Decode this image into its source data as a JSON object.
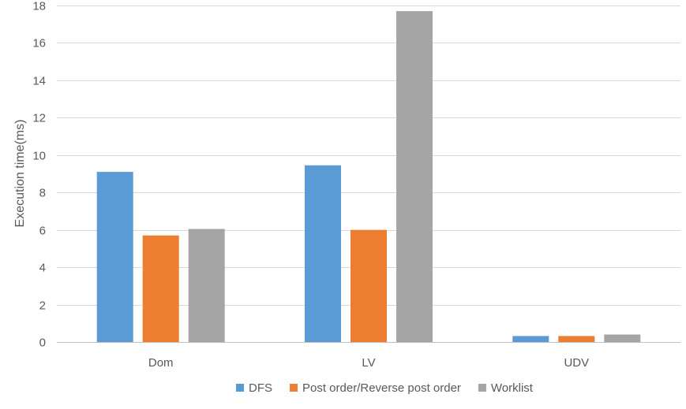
{
  "chart_data": {
    "type": "bar",
    "title": "",
    "xlabel": "",
    "ylabel": "Execution time(ms)",
    "ylim": [
      0,
      18
    ],
    "yticks": [
      0,
      2,
      4,
      6,
      8,
      10,
      12,
      14,
      16,
      18
    ],
    "grid": true,
    "legend_position": "bottom",
    "categories": [
      "Dom",
      "LV",
      "UDV"
    ],
    "series": [
      {
        "name": "DFS",
        "color": "#5b9bd5",
        "values": [
          9.1,
          9.45,
          0.32
        ]
      },
      {
        "name": "Post order/Reverse post order",
        "color": "#ed7d31",
        "values": [
          5.7,
          6.0,
          0.32
        ]
      },
      {
        "name": "Worklist",
        "color": "#a5a5a5",
        "values": [
          6.05,
          17.7,
          0.4
        ]
      }
    ]
  }
}
